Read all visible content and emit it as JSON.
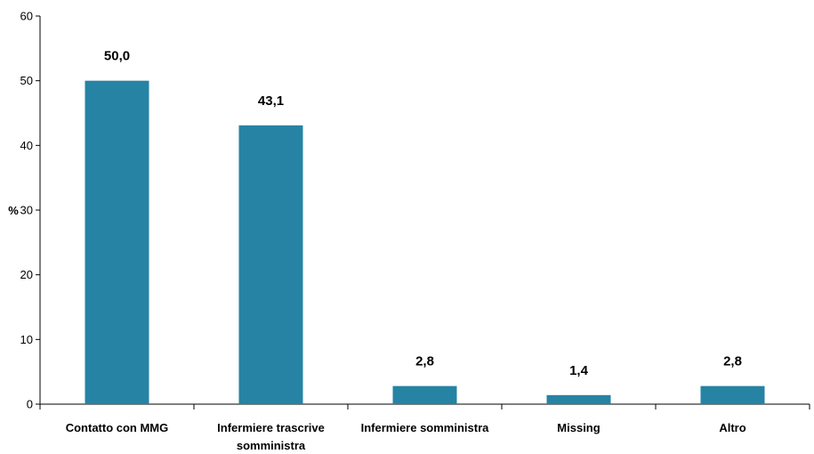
{
  "chart_data": {
    "type": "bar",
    "title": "",
    "xlabel": "",
    "ylabel": "%",
    "ylim": [
      0,
      60
    ],
    "yticks": [
      "0",
      "10",
      "20",
      "30",
      "40",
      "50",
      "60"
    ],
    "grid": false,
    "categories": [
      [
        "Contatto con MMG"
      ],
      [
        "Infermiere trascrive",
        "somministra"
      ],
      [
        "Infermiere somministra"
      ],
      [
        "Missing"
      ],
      [
        "Altro"
      ]
    ],
    "values": [
      50.0,
      43.1,
      2.8,
      1.4,
      2.8
    ],
    "data_labels": [
      "50,0",
      "43,1",
      "2,8",
      "1,4",
      "2,8"
    ],
    "bar_color": "#2683A4"
  }
}
